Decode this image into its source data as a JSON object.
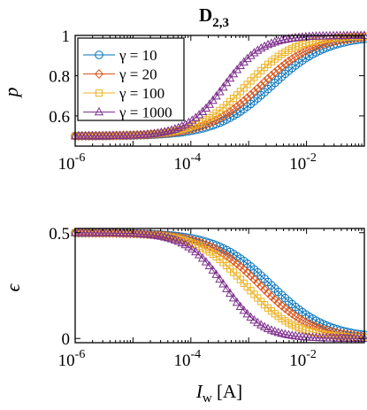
{
  "colors": {
    "blue": "#0072BD",
    "orange": "#D95319",
    "yellow": "#EDB120",
    "purple": "#7E2F8E",
    "axis": "#000000"
  },
  "figure": {
    "title_main": "D",
    "title_sub": "2,3"
  },
  "chart_data": [
    {
      "type": "line",
      "xscale": "log",
      "xlim": [
        1e-06,
        0.1
      ],
      "ylim": [
        0.45,
        1.0
      ],
      "x_ticks": [
        "10",
        "10",
        "10"
      ],
      "x_tick_exps": [
        "-6",
        "-4",
        "-2"
      ],
      "y_ticks": [
        "0.6",
        "0.8",
        "1"
      ],
      "xlabel": "",
      "ylabel": "p",
      "legend_position": "top-left",
      "series": [
        {
          "name": "γ = 10",
          "marker": "circle",
          "color": "#0072BD",
          "x0": 0.0025,
          "dir": 1,
          "lo": 0.5,
          "hi": 1.0,
          "s": 0.48
        },
        {
          "name": "γ = 20",
          "marker": "diamond",
          "color": "#D95319",
          "x0": 0.0016,
          "dir": 1,
          "lo": 0.5,
          "hi": 1.0,
          "s": 0.46
        },
        {
          "name": "γ = 100",
          "marker": "square",
          "color": "#EDB120",
          "x0": 0.0009,
          "dir": 1,
          "lo": 0.5,
          "hi": 1.0,
          "s": 0.42
        },
        {
          "name": "γ = 1000",
          "marker": "triangle",
          "color": "#7E2F8E",
          "x0": 0.00038,
          "dir": 1,
          "lo": 0.5,
          "hi": 1.0,
          "s": 0.33
        }
      ]
    },
    {
      "type": "line",
      "xscale": "log",
      "xlim": [
        1e-06,
        0.1
      ],
      "ylim": [
        -0.02,
        0.52
      ],
      "x_ticks": [
        "10",
        "10",
        "10"
      ],
      "x_tick_exps": [
        "-6",
        "-4",
        "-2"
      ],
      "y_ticks": [
        "0",
        "0.5"
      ],
      "xlabel": "I",
      "xlabel_sub": "w",
      "xlabel_unit": " [A]",
      "ylabel": "ϵ",
      "series": [
        {
          "name": "γ = 10",
          "marker": "circle",
          "color": "#0072BD",
          "x0": 0.0025,
          "dir": -1,
          "lo": 0.0,
          "hi": 0.5,
          "s": 0.48
        },
        {
          "name": "γ = 20",
          "marker": "diamond",
          "color": "#D95319",
          "x0": 0.0016,
          "dir": -1,
          "lo": 0.0,
          "hi": 0.5,
          "s": 0.46
        },
        {
          "name": "γ = 100",
          "marker": "square",
          "color": "#EDB120",
          "x0": 0.0009,
          "dir": -1,
          "lo": 0.0,
          "hi": 0.5,
          "s": 0.42
        },
        {
          "name": "γ = 1000",
          "marker": "triangle",
          "color": "#7E2F8E",
          "x0": 0.00038,
          "dir": -1,
          "lo": 0.0,
          "hi": 0.5,
          "s": 0.33
        }
      ]
    }
  ]
}
